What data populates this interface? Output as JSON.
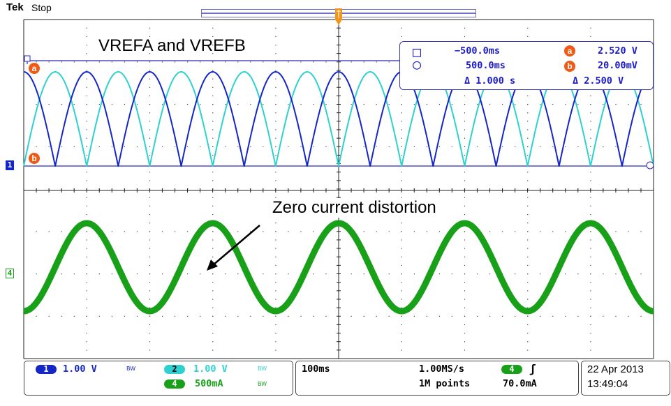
{
  "header": {
    "brand": "Tek",
    "status": "Stop"
  },
  "annotations": {
    "title": "VREFA and VREFB",
    "label": "Zero current distortion"
  },
  "cursors": {
    "t1": "−500.0ms",
    "t2": "500.0ms",
    "dt": "Δ 1.000 s",
    "va": "2.520 V",
    "vb": "20.00mV",
    "dv": "Δ 2.500 V",
    "a_symbol": "a",
    "b_symbol": "b",
    "square_symbol": "□",
    "circle_symbol": "○"
  },
  "markers": {
    "ch1": "1",
    "ch4": "4",
    "a": "a",
    "b": "b"
  },
  "channels": [
    {
      "id": "1",
      "scale": "1.00 V",
      "bw": "BW",
      "color": "#1426c8"
    },
    {
      "id": "2",
      "scale": "1.00 V",
      "bw": "BW",
      "color": "#2fd0d0"
    },
    {
      "id": "4",
      "scale": "500mA",
      "bw": "BW",
      "color": "#19a019"
    }
  ],
  "timebase": {
    "scale": "100ms",
    "sample_rate": "1.00MS/s",
    "record": "1M points"
  },
  "trigger": {
    "source": "4",
    "slope_icon": "rising-edge",
    "slope_glyph": "ʃ",
    "level": "70.0mA"
  },
  "datetime": {
    "date": "22 Apr 2013",
    "time": "13:49:04"
  },
  "colors": {
    "ch1": "#1426c8",
    "ch2": "#2fd0d0",
    "ch4": "#19a019",
    "cursor": "#1c1cc8",
    "cursor_badge": "#f05a14",
    "trigger": "#f0961e"
  },
  "chart_data": {
    "type": "line",
    "xlim": [
      -1.0,
      1.0
    ],
    "x_unit": "s",
    "series": [
      {
        "channel": "1",
        "waveform": "full-wave rectified sine",
        "period_s": 0.2,
        "phase_peak_s": [
          -0.8,
          -0.6,
          -0.4,
          -0.2,
          0.0,
          0.2,
          0.4,
          0.6,
          0.8
        ],
        "peak_V": 2.52,
        "min_V": 0.02
      },
      {
        "channel": "2",
        "waveform": "full-wave rectified sine",
        "period_s": 0.2,
        "phase_peak_s": [
          -0.9,
          -0.7,
          -0.5,
          -0.3,
          -0.1,
          0.1,
          0.3,
          0.5,
          0.7,
          0.9
        ],
        "peak_V": 2.52,
        "min_V": 0.02
      },
      {
        "channel": "4",
        "waveform": "sine",
        "period_s": 0.4,
        "peak_x_s": [
          -0.6,
          -0.2,
          0.2,
          0.6,
          1.0
        ],
        "amplitude_mA": 500
      }
    ]
  }
}
